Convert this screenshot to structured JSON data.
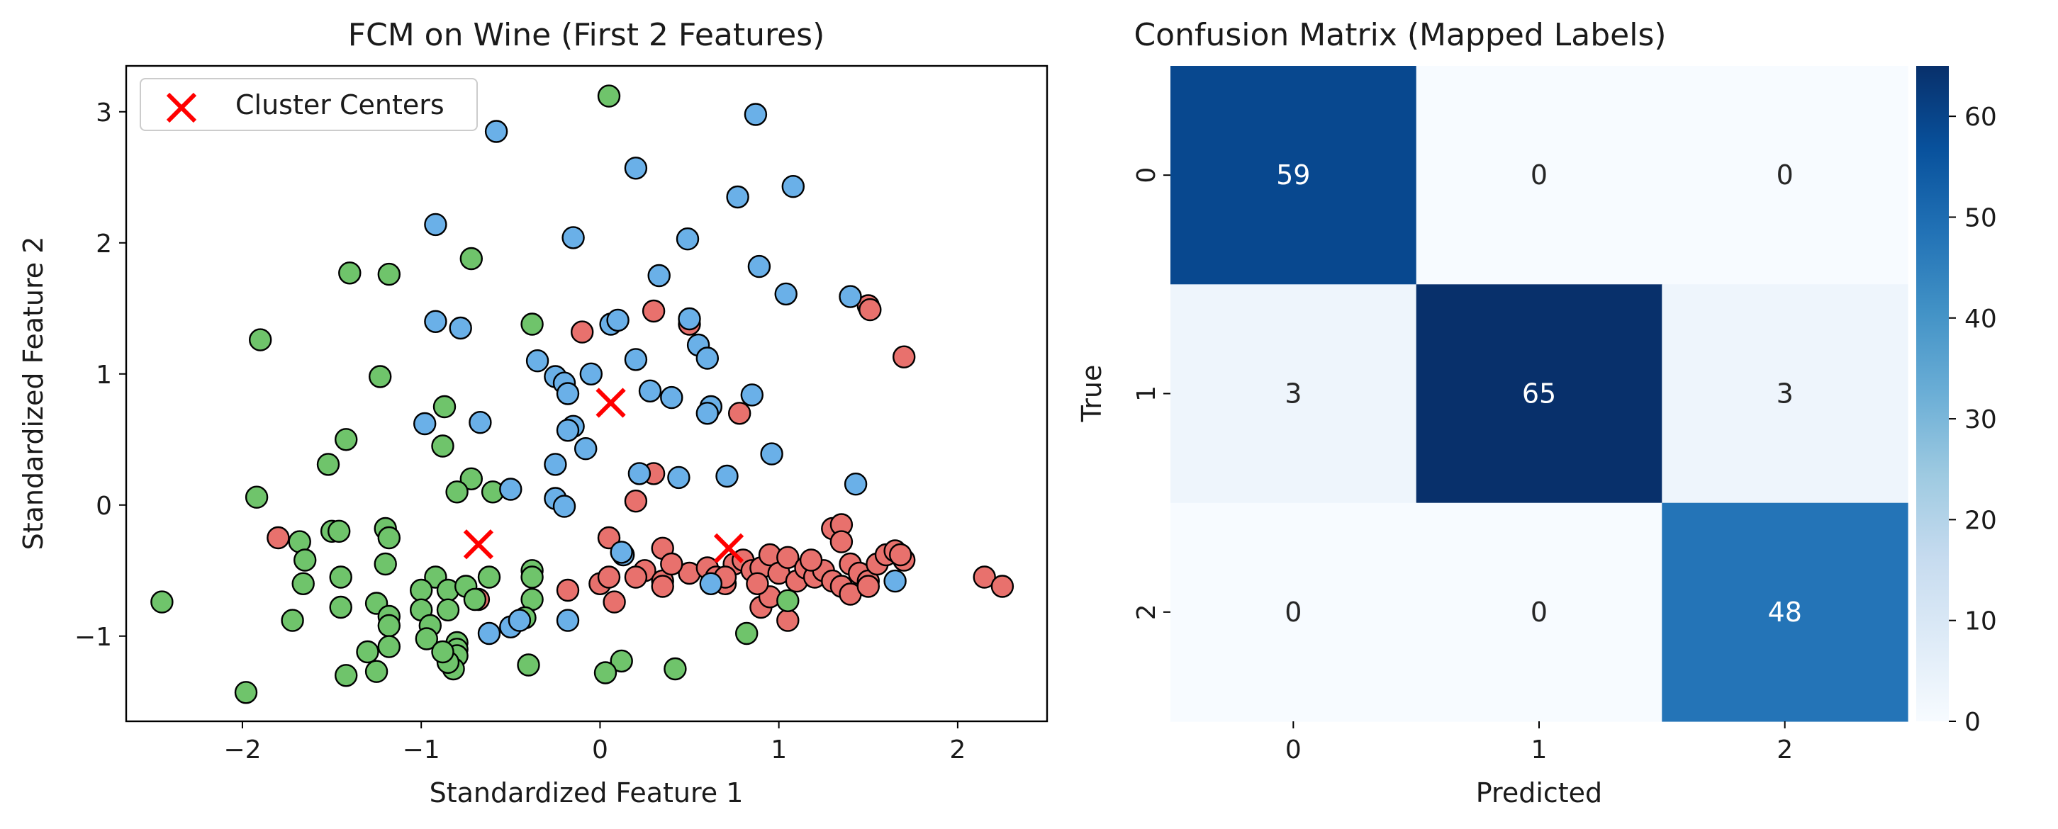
{
  "chart_data": [
    {
      "type": "scatter",
      "title": "FCM on Wine (First 2 Features)",
      "xlabel": "Standardized Feature 1",
      "ylabel": "Standardized Feature 2",
      "xlim": [
        -2.65,
        2.5
      ],
      "ylim": [
        -1.65,
        3.35
      ],
      "xticks": [
        -2,
        -1,
        0,
        1,
        2
      ],
      "yticks": [
        -1,
        0,
        1,
        2,
        3
      ],
      "grid": false,
      "legend": {
        "placement": "upper-left",
        "entries": [
          "Cluster Centers"
        ]
      },
      "colors": {
        "cluster0": "#e8716d",
        "cluster1": "#6fc46b",
        "cluster2": "#6ab0e8",
        "centers": "#ff0000"
      },
      "series": [
        {
          "cluster": 0,
          "points": [
            [
              -1.8,
              -0.25
            ],
            [
              -0.1,
              1.32
            ],
            [
              0.3,
              1.48
            ],
            [
              1.5,
              1.52
            ],
            [
              1.51,
              1.49
            ],
            [
              1.7,
              1.13
            ],
            [
              0.5,
              1.38
            ],
            [
              0.78,
              0.7
            ],
            [
              0.3,
              0.24
            ],
            [
              0.2,
              0.03
            ],
            [
              0.05,
              -0.25
            ],
            [
              0.35,
              -0.33
            ],
            [
              0.0,
              -0.6
            ],
            [
              0.05,
              -0.55
            ],
            [
              0.08,
              -0.74
            ],
            [
              -0.18,
              -0.65
            ],
            [
              0.25,
              -0.5
            ],
            [
              0.35,
              -0.58
            ],
            [
              0.35,
              -0.62
            ],
            [
              0.5,
              -0.52
            ],
            [
              0.6,
              -0.48
            ],
            [
              0.65,
              -0.55
            ],
            [
              0.7,
              -0.6
            ],
            [
              0.75,
              -0.45
            ],
            [
              0.8,
              -0.42
            ],
            [
              0.85,
              -0.5
            ],
            [
              0.9,
              -0.48
            ],
            [
              0.95,
              -0.38
            ],
            [
              1.0,
              -0.52
            ],
            [
              1.05,
              -0.4
            ],
            [
              1.1,
              -0.58
            ],
            [
              1.15,
              -0.48
            ],
            [
              1.2,
              -0.55
            ],
            [
              1.25,
              -0.5
            ],
            [
              1.3,
              -0.58
            ],
            [
              1.35,
              -0.62
            ],
            [
              1.4,
              -0.45
            ],
            [
              1.45,
              -0.52
            ],
            [
              1.5,
              -0.58
            ],
            [
              1.55,
              -0.45
            ],
            [
              1.6,
              -0.38
            ],
            [
              1.65,
              -0.35
            ],
            [
              1.7,
              -0.42
            ],
            [
              1.3,
              -0.18
            ],
            [
              1.35,
              -0.15
            ],
            [
              1.35,
              -0.28
            ],
            [
              1.05,
              -0.88
            ],
            [
              0.9,
              -0.78
            ],
            [
              0.95,
              -0.7
            ],
            [
              0.7,
              -0.55
            ],
            [
              1.4,
              -0.68
            ],
            [
              1.5,
              -0.62
            ],
            [
              0.2,
              -0.55
            ],
            [
              2.15,
              -0.55
            ],
            [
              2.25,
              -0.62
            ],
            [
              -0.68,
              -0.72
            ],
            [
              0.4,
              -0.45
            ],
            [
              0.88,
              -0.6
            ],
            [
              1.18,
              -0.42
            ],
            [
              1.68,
              -0.38
            ]
          ]
        },
        {
          "cluster": 1,
          "points": [
            [
              0.05,
              3.12
            ],
            [
              -0.72,
              1.88
            ],
            [
              -1.4,
              1.77
            ],
            [
              -1.18,
              1.76
            ],
            [
              -1.9,
              1.26
            ],
            [
              -1.23,
              0.98
            ],
            [
              -0.38,
              1.38
            ],
            [
              -0.87,
              0.75
            ],
            [
              -1.42,
              0.5
            ],
            [
              -0.88,
              0.45
            ],
            [
              -1.52,
              0.31
            ],
            [
              -0.72,
              0.2
            ],
            [
              -0.8,
              0.1
            ],
            [
              -0.6,
              0.1
            ],
            [
              -1.92,
              0.06
            ],
            [
              -1.68,
              -0.28
            ],
            [
              -1.5,
              -0.2
            ],
            [
              -1.46,
              -0.2
            ],
            [
              -1.2,
              -0.18
            ],
            [
              -1.18,
              -0.25
            ],
            [
              -1.65,
              -0.42
            ],
            [
              -1.2,
              -0.45
            ],
            [
              -1.45,
              -0.55
            ],
            [
              -1.66,
              -0.6
            ],
            [
              -0.92,
              -0.55
            ],
            [
              -0.62,
              -0.55
            ],
            [
              -1.0,
              -0.65
            ],
            [
              -0.85,
              -0.65
            ],
            [
              -0.75,
              -0.62
            ],
            [
              -0.7,
              -0.72
            ],
            [
              -1.45,
              -0.78
            ],
            [
              -1.25,
              -0.75
            ],
            [
              -1.0,
              -0.8
            ],
            [
              -1.18,
              -0.85
            ],
            [
              -0.85,
              -0.8
            ],
            [
              -0.38,
              -0.5
            ],
            [
              -0.38,
              -0.55
            ],
            [
              -0.38,
              -0.72
            ],
            [
              -0.42,
              -0.86
            ],
            [
              -1.18,
              -0.92
            ],
            [
              -0.95,
              -0.92
            ],
            [
              -1.72,
              -0.88
            ],
            [
              -0.97,
              -1.02
            ],
            [
              -0.8,
              -1.05
            ],
            [
              -0.8,
              -1.1
            ],
            [
              -0.8,
              -1.15
            ],
            [
              -0.82,
              -1.25
            ],
            [
              -0.85,
              -1.2
            ],
            [
              -0.88,
              -1.12
            ],
            [
              -1.18,
              -1.08
            ],
            [
              -1.3,
              -1.12
            ],
            [
              -1.25,
              -1.27
            ],
            [
              -1.42,
              -1.3
            ],
            [
              -0.4,
              -1.22
            ],
            [
              0.12,
              -1.19
            ],
            [
              0.03,
              -1.28
            ],
            [
              0.42,
              -1.25
            ],
            [
              0.82,
              -0.98
            ],
            [
              1.05,
              -0.73
            ],
            [
              -2.45,
              -0.74
            ],
            [
              -1.98,
              -1.43
            ]
          ]
        },
        {
          "cluster": 2,
          "points": [
            [
              -0.58,
              2.85
            ],
            [
              0.87,
              2.98
            ],
            [
              0.2,
              2.57
            ],
            [
              1.08,
              2.43
            ],
            [
              0.77,
              2.35
            ],
            [
              -0.92,
              2.14
            ],
            [
              0.49,
              2.03
            ],
            [
              -0.15,
              2.04
            ],
            [
              0.89,
              1.82
            ],
            [
              0.33,
              1.75
            ],
            [
              1.04,
              1.61
            ],
            [
              1.4,
              1.59
            ],
            [
              -0.92,
              1.4
            ],
            [
              -0.78,
              1.35
            ],
            [
              0.06,
              1.38
            ],
            [
              0.1,
              1.41
            ],
            [
              0.5,
              1.42
            ],
            [
              0.55,
              1.22
            ],
            [
              0.6,
              1.12
            ],
            [
              0.2,
              1.11
            ],
            [
              -0.35,
              1.1
            ],
            [
              -0.25,
              0.98
            ],
            [
              -0.2,
              0.93
            ],
            [
              -0.18,
              0.85
            ],
            [
              -0.05,
              1.0
            ],
            [
              0.28,
              0.87
            ],
            [
              0.4,
              0.82
            ],
            [
              0.85,
              0.84
            ],
            [
              0.62,
              0.75
            ],
            [
              0.6,
              0.7
            ],
            [
              -0.98,
              0.62
            ],
            [
              -0.67,
              0.63
            ],
            [
              -0.15,
              0.6
            ],
            [
              -0.18,
              0.57
            ],
            [
              -0.08,
              0.43
            ],
            [
              0.96,
              0.39
            ],
            [
              -0.25,
              0.31
            ],
            [
              0.22,
              0.24
            ],
            [
              0.44,
              0.21
            ],
            [
              0.71,
              0.22
            ],
            [
              1.43,
              0.16
            ],
            [
              -0.5,
              0.12
            ],
            [
              -0.25,
              0.05
            ],
            [
              -0.2,
              -0.01
            ],
            [
              0.13,
              -0.38
            ],
            [
              0.62,
              -0.6
            ],
            [
              1.65,
              -0.58
            ],
            [
              -0.62,
              -0.98
            ],
            [
              -0.5,
              -0.93
            ],
            [
              -0.45,
              -0.88
            ],
            [
              -0.18,
              -0.88
            ],
            [
              0.12,
              -0.36
            ]
          ]
        }
      ],
      "centers": [
        [
          -0.68,
          -0.3
        ],
        [
          0.06,
          0.78
        ],
        [
          0.72,
          -0.33
        ]
      ]
    },
    {
      "type": "heatmap",
      "title": "Confusion Matrix (Mapped Labels)",
      "xlabel": "Predicted",
      "ylabel": "True",
      "xticklabels": [
        "0",
        "1",
        "2"
      ],
      "yticklabels": [
        "0",
        "1",
        "2"
      ],
      "values": [
        [
          59,
          0,
          0
        ],
        [
          3,
          65,
          3
        ],
        [
          0,
          0,
          48
        ]
      ],
      "cell_text": [
        [
          "59",
          "0",
          "0"
        ],
        [
          "3",
          "65",
          "3"
        ],
        [
          "0",
          "0",
          "48"
        ]
      ],
      "colormap": "Blues",
      "vmin": 0,
      "vmax": 65,
      "colorbar_ticks": [
        0,
        10,
        20,
        30,
        40,
        50,
        60
      ],
      "colorbar_ticklabels": [
        "0",
        "10",
        "20",
        "30",
        "40",
        "50",
        "60"
      ]
    }
  ]
}
